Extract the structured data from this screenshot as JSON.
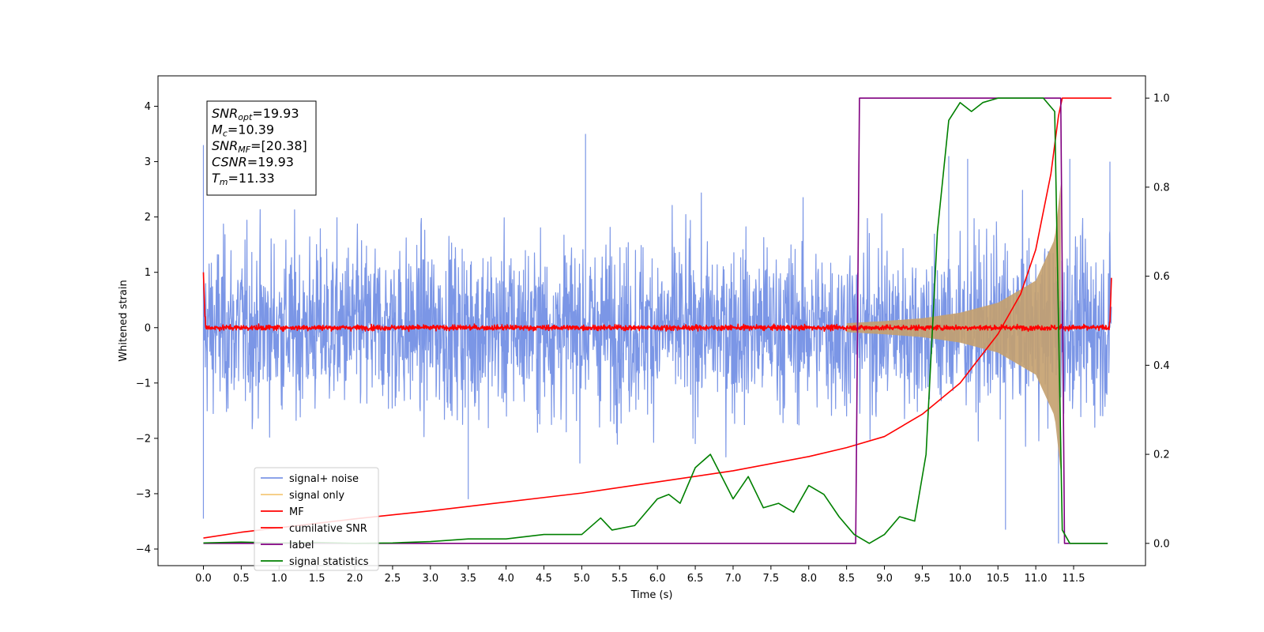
{
  "chart_data": {
    "type": "line",
    "xlabel": "Time (s)",
    "ylabel": "Whitened strain",
    "xlim": [
      -0.6,
      12.45
    ],
    "ylim": [
      -4.3,
      4.55
    ],
    "y2lim": [
      -0.05,
      1.05
    ],
    "xticks": [
      0.0,
      0.5,
      1.0,
      1.5,
      2.0,
      2.5,
      3.0,
      3.5,
      4.0,
      4.5,
      5.0,
      5.5,
      6.0,
      6.5,
      7.0,
      7.5,
      8.0,
      8.5,
      9.0,
      9.5,
      10.0,
      10.5,
      11.0,
      11.5
    ],
    "xtick_labels": [
      "0.0",
      "0.5",
      "1.0",
      "1.5",
      "2.0",
      "2.5",
      "3.0",
      "3.5",
      "4.0",
      "4.5",
      "5.0",
      "5.5",
      "6.0",
      "6.5",
      "7.0",
      "7.5",
      "8.0",
      "8.5",
      "9.0",
      "9.5",
      "10.0",
      "10.5",
      "11.0",
      "11.5"
    ],
    "yticks": [
      -4,
      -3,
      -2,
      -1,
      0,
      1,
      2,
      3,
      4
    ],
    "ytick_labels": [
      "−4",
      "−3",
      "−2",
      "−1",
      "0",
      "1",
      "2",
      "3",
      "4"
    ],
    "y2ticks": [
      0.0,
      0.2,
      0.4,
      0.6,
      0.8,
      1.0
    ],
    "y2tick_labels": [
      "0.0",
      "0.2",
      "0.4",
      "0.6",
      "0.8",
      "1.0"
    ],
    "legend_position": "lower-left",
    "annotation": {
      "lines": [
        {
          "base": "SNR",
          "sub": "opt",
          "rest": "=19.93"
        },
        {
          "base": "M",
          "sub": "c",
          "rest": "=10.39"
        },
        {
          "base": "SNR",
          "sub": "MF",
          "rest": "=[20.38]"
        },
        {
          "base": "CSNR",
          "sub": "",
          "rest": "=19.93"
        },
        {
          "base": "T",
          "sub": "m",
          "rest": "=11.33"
        }
      ]
    },
    "series": [
      {
        "name": "signal+ noise",
        "color": "#7b96e6",
        "axis": "left",
        "kind": "noise-band",
        "t_range": [
          0.0,
          12.0
        ],
        "envelope": [
          [
            0.0,
            2.6
          ],
          [
            12.0,
            2.6
          ]
        ],
        "spike_peaks": [
          [
            0.0,
            3.3
          ],
          [
            0.0,
            -3.45
          ],
          [
            5.05,
            3.5
          ],
          [
            9.85,
            3.1
          ],
          [
            10.1,
            3.05
          ],
          [
            10.6,
            -3.65
          ],
          [
            11.45,
            3.05
          ],
          [
            11.3,
            -3.9
          ],
          [
            11.98,
            3.0
          ],
          [
            3.5,
            -3.1
          ]
        ]
      },
      {
        "name": "signal only",
        "color": "#f5c97a",
        "axis": "left",
        "kind": "chirp",
        "t_range": [
          8.5,
          11.33
        ],
        "amplitude_points": [
          [
            8.5,
            0.08
          ],
          [
            9.0,
            0.12
          ],
          [
            9.5,
            0.17
          ],
          [
            10.0,
            0.27
          ],
          [
            10.5,
            0.45
          ],
          [
            11.0,
            0.85
          ],
          [
            11.25,
            1.6
          ],
          [
            11.33,
            2.6
          ]
        ]
      },
      {
        "name": "MF",
        "color": "#ff0000",
        "axis": "left",
        "kind": "noise-band",
        "t_range": [
          0.0,
          12.0
        ],
        "envelope": [
          [
            0.0,
            0.08
          ],
          [
            12.0,
            0.08
          ]
        ],
        "edge_points": [
          [
            0.0,
            1.0
          ],
          [
            0.02,
            0.2
          ],
          [
            11.98,
            0.1
          ],
          [
            12.0,
            0.9
          ]
        ]
      },
      {
        "name": "cumilative SNR",
        "color": "#ff0000",
        "axis": "right",
        "kind": "line",
        "points": [
          [
            0.0,
            0.012
          ],
          [
            0.5,
            0.025
          ],
          [
            1.0,
            0.035
          ],
          [
            2.0,
            0.055
          ],
          [
            3.0,
            0.073
          ],
          [
            4.0,
            0.093
          ],
          [
            5.0,
            0.113
          ],
          [
            6.0,
            0.138
          ],
          [
            7.0,
            0.163
          ],
          [
            8.0,
            0.195
          ],
          [
            8.5,
            0.215
          ],
          [
            9.0,
            0.24
          ],
          [
            9.5,
            0.29
          ],
          [
            10.0,
            0.36
          ],
          [
            10.5,
            0.47
          ],
          [
            10.8,
            0.56
          ],
          [
            11.0,
            0.66
          ],
          [
            11.2,
            0.83
          ],
          [
            11.3,
            0.96
          ],
          [
            11.35,
            1.0
          ],
          [
            12.0,
            1.0
          ]
        ]
      },
      {
        "name": "label",
        "color": "#800080",
        "axis": "right",
        "kind": "line",
        "points": [
          [
            0.0,
            0.0
          ],
          [
            8.62,
            0.0
          ],
          [
            8.67,
            1.0
          ],
          [
            11.33,
            1.0
          ],
          [
            11.38,
            0.0
          ],
          [
            11.95,
            0.0
          ]
        ]
      },
      {
        "name": "signal statistics",
        "color": "#008000",
        "axis": "right",
        "kind": "line",
        "points": [
          [
            0.0,
            0.001
          ],
          [
            0.5,
            0.003
          ],
          [
            1.0,
            0.001
          ],
          [
            1.5,
            0.002
          ],
          [
            2.0,
            0.0
          ],
          [
            2.5,
            0.001
          ],
          [
            3.0,
            0.004
          ],
          [
            3.5,
            0.01
          ],
          [
            4.0,
            0.01
          ],
          [
            4.5,
            0.02
          ],
          [
            5.0,
            0.02
          ],
          [
            5.25,
            0.057
          ],
          [
            5.4,
            0.03
          ],
          [
            5.7,
            0.04
          ],
          [
            6.0,
            0.1
          ],
          [
            6.15,
            0.11
          ],
          [
            6.3,
            0.09
          ],
          [
            6.5,
            0.17
          ],
          [
            6.7,
            0.2
          ],
          [
            6.85,
            0.15
          ],
          [
            7.0,
            0.1
          ],
          [
            7.2,
            0.15
          ],
          [
            7.4,
            0.08
          ],
          [
            7.6,
            0.09
          ],
          [
            7.8,
            0.07
          ],
          [
            8.0,
            0.13
          ],
          [
            8.2,
            0.11
          ],
          [
            8.4,
            0.06
          ],
          [
            8.6,
            0.02
          ],
          [
            8.8,
            0.0
          ],
          [
            9.0,
            0.02
          ],
          [
            9.2,
            0.06
          ],
          [
            9.4,
            0.05
          ],
          [
            9.55,
            0.2
          ],
          [
            9.7,
            0.7
          ],
          [
            9.85,
            0.95
          ],
          [
            10.0,
            0.99
          ],
          [
            10.15,
            0.97
          ],
          [
            10.3,
            0.99
          ],
          [
            10.5,
            1.0
          ],
          [
            10.8,
            1.0
          ],
          [
            11.1,
            1.0
          ],
          [
            11.25,
            0.97
          ],
          [
            11.35,
            0.03
          ],
          [
            11.45,
            0.0
          ],
          [
            11.95,
            0.0
          ]
        ]
      }
    ]
  }
}
